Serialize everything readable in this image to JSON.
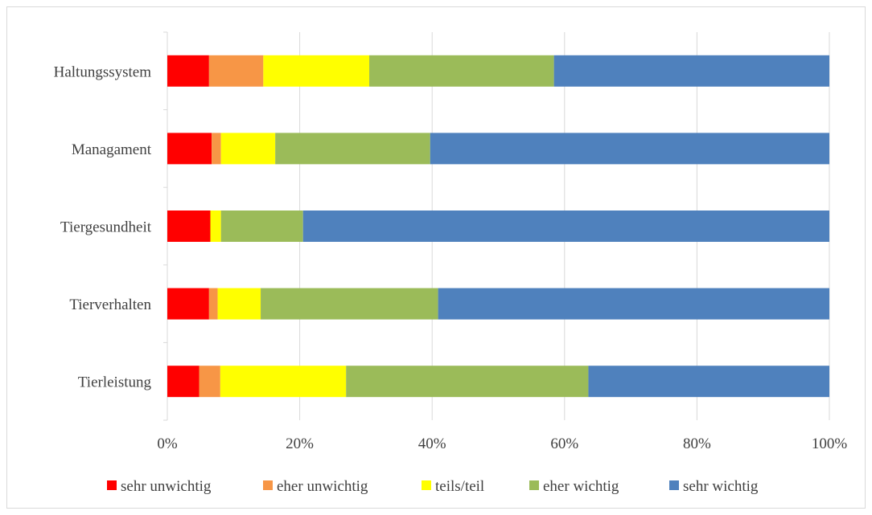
{
  "chart_data": {
    "type": "bar",
    "orientation": "horizontal",
    "stacked": "percent",
    "categories": [
      "Haltungssystem",
      "Managament",
      "Tiergesundheit",
      "Tierverhalten",
      "Tierleistung"
    ],
    "series": [
      {
        "name": "sehr unwichtig",
        "color": "#ff0000",
        "values": [
          6.3,
          6.7,
          6.5,
          6.3,
          4.8
        ]
      },
      {
        "name": "eher unwichtig",
        "color": "#f79646",
        "values": [
          8.2,
          1.4,
          0.0,
          1.3,
          3.2
        ]
      },
      {
        "name": "teils/teil",
        "color": "#ffff00",
        "values": [
          16.0,
          8.2,
          1.6,
          6.5,
          19.0
        ]
      },
      {
        "name": "eher wichtig",
        "color": "#9bbb59",
        "values": [
          27.9,
          23.4,
          12.4,
          26.8,
          36.6
        ]
      },
      {
        "name": "sehr wichtig",
        "color": "#4f81bd",
        "values": [
          41.6,
          60.3,
          79.5,
          59.1,
          36.4
        ]
      }
    ],
    "x_ticks": [
      "0%",
      "20%",
      "40%",
      "60%",
      "80%",
      "100%"
    ],
    "xlim": [
      0,
      100
    ],
    "grid": true,
    "legend_position": "bottom",
    "title": "",
    "xlabel": "",
    "ylabel": ""
  }
}
